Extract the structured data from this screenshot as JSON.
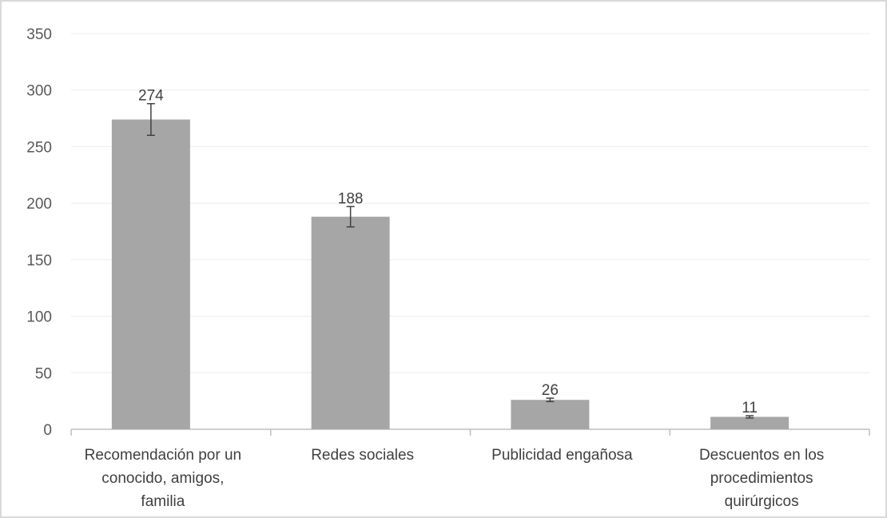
{
  "chart_data": {
    "type": "bar",
    "title": "",
    "xlabel": "",
    "ylabel": "",
    "categories": [
      [
        "Recomendación por un",
        "conocido, amigos,",
        "familia"
      ],
      [
        "Redes sociales"
      ],
      [
        "Publicidad engañosa"
      ],
      [
        "Descuentos en los",
        "procedimientos",
        "quirúrgicos"
      ]
    ],
    "values": [
      274,
      188,
      26,
      11
    ],
    "data_labels": [
      "274",
      "188",
      "26",
      "11"
    ],
    "error_bars": [
      {
        "low": 260,
        "high": 288
      },
      {
        "low": 179,
        "high": 197
      },
      {
        "low": 24.5,
        "high": 27.5
      },
      {
        "low": 10,
        "high": 12
      }
    ],
    "ylim": [
      0,
      350
    ],
    "yticks": [
      0,
      50,
      100,
      150,
      200,
      250,
      300,
      350
    ],
    "ytick_labels": [
      "0",
      "50",
      "100",
      "150",
      "200",
      "250",
      "300",
      "350"
    ],
    "grid": true,
    "legend": "none",
    "colors": {
      "bar": "#a6a6a6",
      "grid": "#ececec",
      "axis": "#bfbfbf",
      "error_bar": "#404040",
      "border": "#d9d9d9"
    }
  }
}
